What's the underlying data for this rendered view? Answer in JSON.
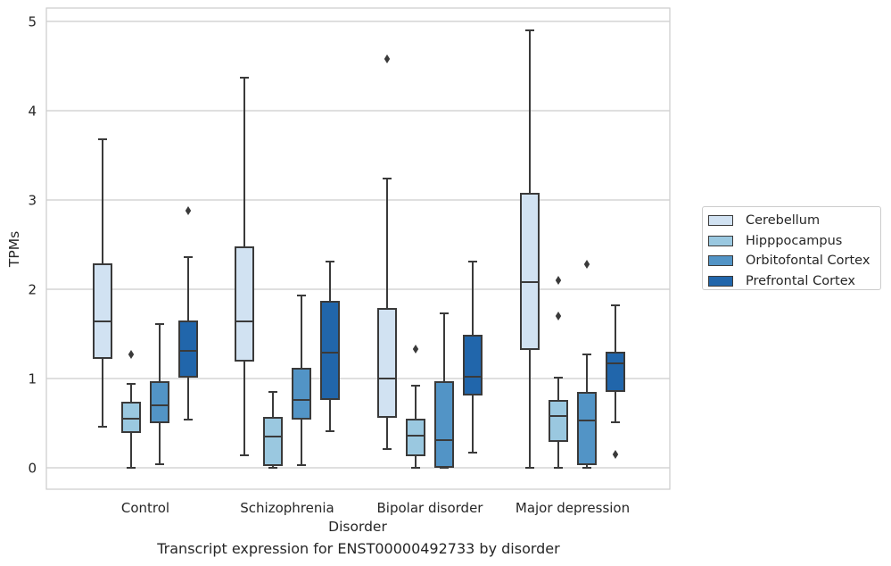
{
  "chart_data": {
    "type": "box",
    "xlabel": "Disorder",
    "ylabel": "TPMs",
    "caption": "Transcript expression for ENST00000492733 by disorder",
    "categories": [
      "Control",
      "Schizophrenia",
      "Bipolar disorder",
      "Major depression"
    ],
    "yticks": [
      0,
      1,
      2,
      3,
      4,
      5
    ],
    "ylim": [
      -0.24,
      5.15
    ],
    "grid": "horizontal",
    "legend_position": "right",
    "series": [
      {
        "name": "Cerebellum",
        "color": "#d1e2f2",
        "boxes": [
          {
            "whislo": 0.46,
            "q1": 1.23,
            "med": 1.64,
            "q3": 2.28,
            "whishi": 3.68,
            "fliers": []
          },
          {
            "whislo": 0.14,
            "q1": 1.2,
            "med": 1.64,
            "q3": 2.47,
            "whishi": 4.37,
            "fliers": []
          },
          {
            "whislo": 0.21,
            "q1": 0.57,
            "med": 1.0,
            "q3": 1.78,
            "whishi": 3.24,
            "fliers": [
              4.58
            ]
          },
          {
            "whislo": 0.0,
            "q1": 1.33,
            "med": 2.08,
            "q3": 3.07,
            "whishi": 4.9,
            "fliers": []
          }
        ]
      },
      {
        "name": "Hipppocampus",
        "color": "#9ac8e0",
        "boxes": [
          {
            "whislo": 0.0,
            "q1": 0.4,
            "med": 0.55,
            "q3": 0.73,
            "whishi": 0.94,
            "fliers": [
              1.27
            ]
          },
          {
            "whislo": 0.0,
            "q1": 0.03,
            "med": 0.35,
            "q3": 0.56,
            "whishi": 0.85,
            "fliers": []
          },
          {
            "whislo": 0.0,
            "q1": 0.14,
            "med": 0.36,
            "q3": 0.54,
            "whishi": 0.92,
            "fliers": [
              1.33
            ]
          },
          {
            "whislo": 0.0,
            "q1": 0.3,
            "med": 0.58,
            "q3": 0.75,
            "whishi": 1.01,
            "fliers": [
              2.1,
              1.7
            ]
          }
        ]
      },
      {
        "name": "Orbitofontal Cortex",
        "color": "#5294c6",
        "boxes": [
          {
            "whislo": 0.04,
            "q1": 0.51,
            "med": 0.7,
            "q3": 0.96,
            "whishi": 1.61,
            "fliers": []
          },
          {
            "whislo": 0.03,
            "q1": 0.55,
            "med": 0.76,
            "q3": 1.11,
            "whishi": 1.93,
            "fliers": []
          },
          {
            "whislo": 0.0,
            "q1": 0.01,
            "med": 0.31,
            "q3": 0.96,
            "whishi": 1.73,
            "fliers": []
          },
          {
            "whislo": 0.0,
            "q1": 0.04,
            "med": 0.53,
            "q3": 0.84,
            "whishi": 1.27,
            "fliers": [
              2.28
            ]
          }
        ]
      },
      {
        "name": "Prefrontal Cortex",
        "color": "#2166ab",
        "boxes": [
          {
            "whislo": 0.54,
            "q1": 1.02,
            "med": 1.31,
            "q3": 1.64,
            "whishi": 2.36,
            "fliers": [
              2.88
            ]
          },
          {
            "whislo": 0.41,
            "q1": 0.77,
            "med": 1.29,
            "q3": 1.86,
            "whishi": 2.31,
            "fliers": []
          },
          {
            "whislo": 0.17,
            "q1": 0.82,
            "med": 1.02,
            "q3": 1.48,
            "whishi": 2.31,
            "fliers": []
          },
          {
            "whislo": 0.51,
            "q1": 0.86,
            "med": 1.17,
            "q3": 1.29,
            "whishi": 1.82,
            "fliers": [
              0.15
            ]
          }
        ]
      }
    ]
  }
}
